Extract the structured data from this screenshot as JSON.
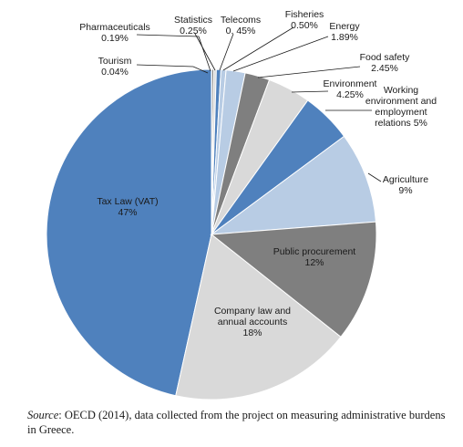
{
  "chart_data": {
    "type": "pie",
    "slices": [
      {
        "label": [
          "Tax Law (VAT)",
          "47%"
        ],
        "value": 47,
        "color": "#4f81bd"
      },
      {
        "label": [
          "Tourism",
          "0.04%"
        ],
        "value": 0.04,
        "color": "#a6a6a6"
      },
      {
        "label": [
          "Pharmaceuticals",
          "0.19%"
        ],
        "value": 0.19,
        "color": "#7f7f7f"
      },
      {
        "label": [
          "Statistics",
          "0.25%"
        ],
        "value": 0.25,
        "color": "#d9d9d9"
      },
      {
        "label": [
          "Telecoms",
          "0. 45%"
        ],
        "value": 0.45,
        "color": "#4f81bd"
      },
      {
        "label": [
          "Fisheries",
          "0.50%"
        ],
        "value": 0.5,
        "color": "#b8cce4"
      },
      {
        "label": [
          "Energy",
          "1.89%"
        ],
        "value": 1.89,
        "color": "#b8cce4"
      },
      {
        "label": [
          "Food safety",
          "2.45%"
        ],
        "value": 2.45,
        "color": "#7f7f7f"
      },
      {
        "label": [
          "Environment",
          "4.25%"
        ],
        "value": 4.25,
        "color": "#d9d9d9"
      },
      {
        "label": [
          "Working",
          "environment and",
          "employment",
          "relations 5%"
        ],
        "value": 5,
        "color": "#4f81bd"
      },
      {
        "label": [
          "Agriculture",
          "9%"
        ],
        "value": 9,
        "color": "#b8cce4"
      },
      {
        "label": [
          "Public procurement",
          "12%"
        ],
        "value": 12,
        "color": "#7f7f7f"
      },
      {
        "label": [
          "Company law and",
          "annual accounts",
          "18%"
        ],
        "value": 18,
        "color": "#d9d9d9"
      }
    ]
  },
  "source": {
    "prefix": "Source",
    "text": ": OECD (2014), data collected from the project on measuring administrative burdens in Greece."
  }
}
